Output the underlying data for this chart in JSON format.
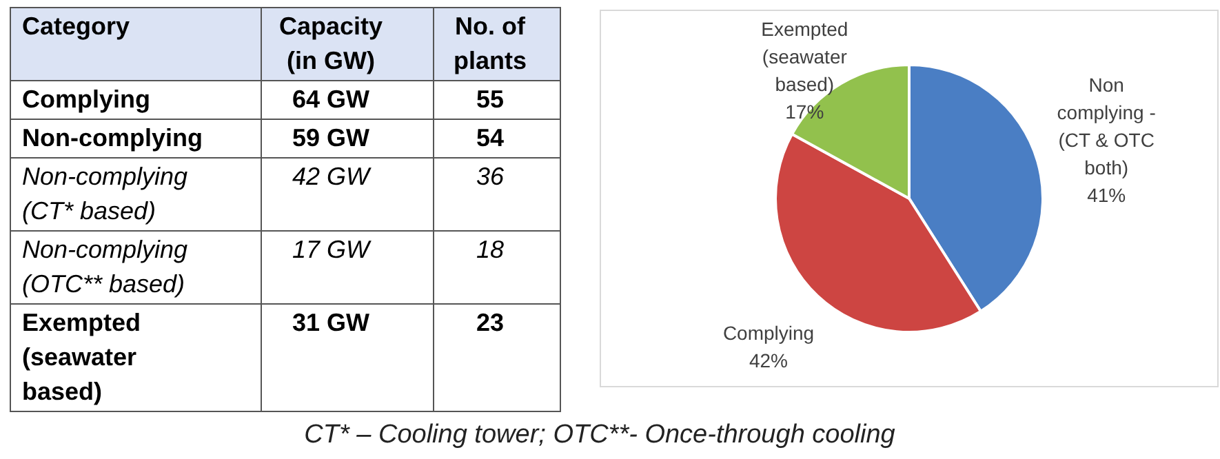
{
  "chart_data": [
    {
      "type": "other",
      "annotations": [
        "Category",
        "Capacity (in GW)",
        "No. of plants",
        "Complying",
        "64 GW",
        "55",
        "Non-complying",
        "59 GW",
        "54",
        "Non-complying (CT* based)",
        "42 GW",
        "36",
        "Non-complying (OTC** based)",
        "17 GW",
        "18",
        "Exempted (seawater based)",
        "31 GW",
        "23",
        "CT* – Cooling tower; OTC**- Once-through cooling"
      ]
    },
    {
      "type": "pie",
      "categories": [
        "Non complying - (CT & OTC both)",
        "Complying",
        "Exempted (seawater based)"
      ],
      "values": [
        41,
        42,
        17
      ],
      "colors": [
        "#4a7ec4",
        "#cd4542",
        "#92c14d"
      ],
      "value_labels": [
        "41%",
        "42%",
        "17%"
      ]
    }
  ]
}
